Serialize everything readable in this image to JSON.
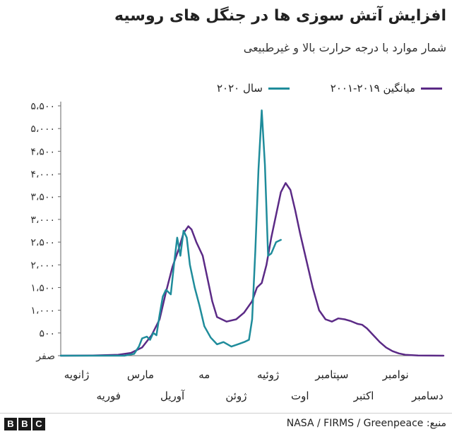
{
  "header": {
    "title": "افزایش آتش سوزی ها در جنگل های روسیه",
    "subtitle": "شمار موارد با درجه حرارت بالا و غیرطبیعی"
  },
  "legend": {
    "avg_label": "میانگین ۲۰۱۹-۲۰۰۱",
    "y2020_label": "سال ۲۰۲۰"
  },
  "footer": {
    "brand_letters": [
      "B",
      "B",
      "C"
    ],
    "source": "منبع: NASA / FIRMS / Greenpeace"
  },
  "chart_data": {
    "type": "line",
    "title": "افزایش آتش سوزی ها در جنگل های روسیه",
    "subtitle": "شمار موارد با درجه حرارت بالا و غیرطبیعی",
    "xlabel": "",
    "ylabel": "",
    "ylim": [
      0,
      5500
    ],
    "xlim": [
      0,
      12
    ],
    "grid": false,
    "legend_position": "top",
    "colors": {
      "avg": "#5b2a86",
      "y2020": "#1f8c9b",
      "axis": "#666666"
    },
    "y_ticks": [
      {
        "value": 0,
        "label": "صفر"
      },
      {
        "value": 500,
        "label": "۵۰۰"
      },
      {
        "value": 1000,
        "label": "۱،۰۰۰"
      },
      {
        "value": 1500,
        "label": "۱،۵۰۰"
      },
      {
        "value": 2000,
        "label": "۲،۰۰۰"
      },
      {
        "value": 2500,
        "label": "۲،۵۰۰"
      },
      {
        "value": 3000,
        "label": "۳،۰۰۰"
      },
      {
        "value": 3500,
        "label": "۳،۵۰۰"
      },
      {
        "value": 4000,
        "label": "۴،۰۰۰"
      },
      {
        "value": 4500,
        "label": "۴،۵۰۰"
      },
      {
        "value": 5000,
        "label": "۵،۰۰۰"
      },
      {
        "value": 5500,
        "label": "۵،۵۰۰"
      }
    ],
    "x_ticks": [
      {
        "value": 0.5,
        "label": "ژانویه",
        "row": 1
      },
      {
        "value": 1.5,
        "label": "فوریه",
        "row": 2
      },
      {
        "value": 2.5,
        "label": "مارس",
        "row": 1
      },
      {
        "value": 3.5,
        "label": "آوریل",
        "row": 2
      },
      {
        "value": 4.5,
        "label": "مه",
        "row": 1
      },
      {
        "value": 5.5,
        "label": "ژوئن",
        "row": 2
      },
      {
        "value": 6.5,
        "label": "ژوئیه",
        "row": 1
      },
      {
        "value": 7.5,
        "label": "اوت",
        "row": 2
      },
      {
        "value": 8.5,
        "label": "سپتامبر",
        "row": 1
      },
      {
        "value": 9.5,
        "label": "اکتبر",
        "row": 2
      },
      {
        "value": 10.5,
        "label": "نوامبر",
        "row": 1
      },
      {
        "value": 11.5,
        "label": "دسامبر",
        "row": 2
      }
    ],
    "series": [
      {
        "name": "میانگین ۲۰۱۹-۲۰۰۱",
        "color": "#5b2a86",
        "x": [
          0,
          1.0,
          1.8,
          2.2,
          2.55,
          2.85,
          3.1,
          3.3,
          3.5,
          3.7,
          3.85,
          4.0,
          4.1,
          4.25,
          4.45,
          4.6,
          4.75,
          4.9,
          5.2,
          5.5,
          5.75,
          6.0,
          6.15,
          6.3,
          6.45,
          6.6,
          6.75,
          6.9,
          7.05,
          7.2,
          7.35,
          7.5,
          7.7,
          7.9,
          8.1,
          8.3,
          8.5,
          8.7,
          8.9,
          9.1,
          9.3,
          9.45,
          9.6,
          9.8,
          10.0,
          10.2,
          10.4,
          10.6,
          10.8,
          11.2,
          12.0
        ],
        "values": [
          0,
          5,
          20,
          60,
          180,
          450,
          800,
          1400,
          1950,
          2350,
          2700,
          2850,
          2780,
          2500,
          2200,
          1700,
          1200,
          850,
          750,
          800,
          950,
          1200,
          1500,
          1600,
          2000,
          2600,
          3100,
          3600,
          3800,
          3650,
          3200,
          2700,
          2100,
          1500,
          1000,
          800,
          750,
          820,
          800,
          760,
          700,
          680,
          600,
          450,
          300,
          180,
          100,
          50,
          20,
          5,
          0
        ]
      },
      {
        "name": "سال ۲۰۲۰",
        "color": "#1f8c9b",
        "x": [
          0,
          1.0,
          2.0,
          2.3,
          2.45,
          2.55,
          2.7,
          2.8,
          2.9,
          3.0,
          3.1,
          3.2,
          3.3,
          3.45,
          3.55,
          3.65,
          3.75,
          3.85,
          3.95,
          4.05,
          4.2,
          4.35,
          4.5,
          4.7,
          4.9,
          5.1,
          5.35,
          5.55,
          5.75,
          5.9,
          6.0,
          6.1,
          6.2,
          6.3,
          6.4,
          6.5,
          6.6,
          6.75,
          6.9
        ],
        "values": [
          0,
          0,
          0,
          40,
          200,
          380,
          420,
          350,
          500,
          450,
          900,
          1300,
          1450,
          1350,
          2000,
          2600,
          2200,
          2750,
          2600,
          2000,
          1500,
          1100,
          650,
          400,
          250,
          300,
          200,
          250,
          300,
          350,
          800,
          2300,
          4100,
          5400,
          4200,
          2200,
          2250,
          2500,
          2550
        ]
      }
    ]
  }
}
